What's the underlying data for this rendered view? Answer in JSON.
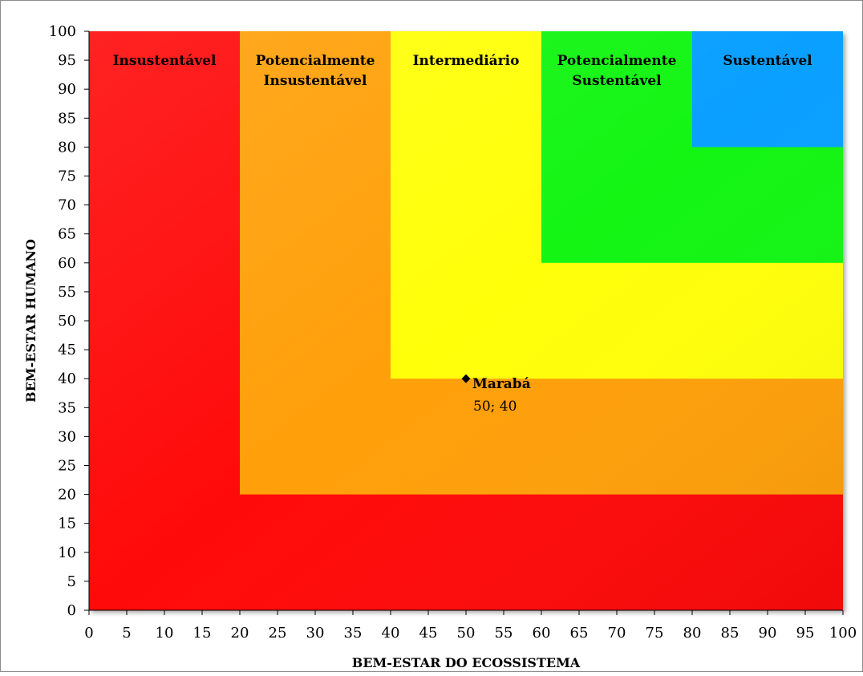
{
  "chart_data": {
    "type": "scatter",
    "title": "",
    "xlabel": "BEM-ESTAR DO ECOSSISTEMA",
    "ylabel": "BEM-ESTAR HUMANO",
    "xlim": [
      0,
      100
    ],
    "ylim": [
      0,
      100
    ],
    "xticks": [
      "0",
      "5",
      "10",
      "15",
      "20",
      "25",
      "30",
      "35",
      "40",
      "45",
      "50",
      "55",
      "60",
      "65",
      "70",
      "75",
      "80",
      "85",
      "90",
      "95",
      "100"
    ],
    "yticks": [
      "0",
      "5",
      "10",
      "15",
      "20",
      "25",
      "30",
      "35",
      "40",
      "45",
      "50",
      "55",
      "60",
      "65",
      "70",
      "75",
      "80",
      "85",
      "90",
      "95",
      "100"
    ],
    "grid": false,
    "zones": [
      {
        "name": "Insustentável",
        "lines": [
          "Insustentável"
        ],
        "min": 0,
        "max": 20,
        "color": "#ff0a0a"
      },
      {
        "name": "Potencialmente Insustentável",
        "lines": [
          "Potencialmente",
          "Insustentável"
        ],
        "min": 20,
        "max": 40,
        "color": "#ffa00a"
      },
      {
        "name": "Intermediário",
        "lines": [
          "Intermediário"
        ],
        "min": 40,
        "max": 60,
        "color": "#ffff0a"
      },
      {
        "name": "Potencialmente Sustentável",
        "lines": [
          "Potencialmente",
          "Sustentável"
        ],
        "min": 60,
        "max": 80,
        "color": "#14f514"
      },
      {
        "name": "Sustentável",
        "lines": [
          "Sustentável"
        ],
        "min": 80,
        "max": 100,
        "color": "#0aa0ff"
      }
    ],
    "points": [
      {
        "label": "Marabá",
        "value_text": "50; 40",
        "x": 50,
        "y": 40,
        "color": "#000000"
      }
    ]
  }
}
